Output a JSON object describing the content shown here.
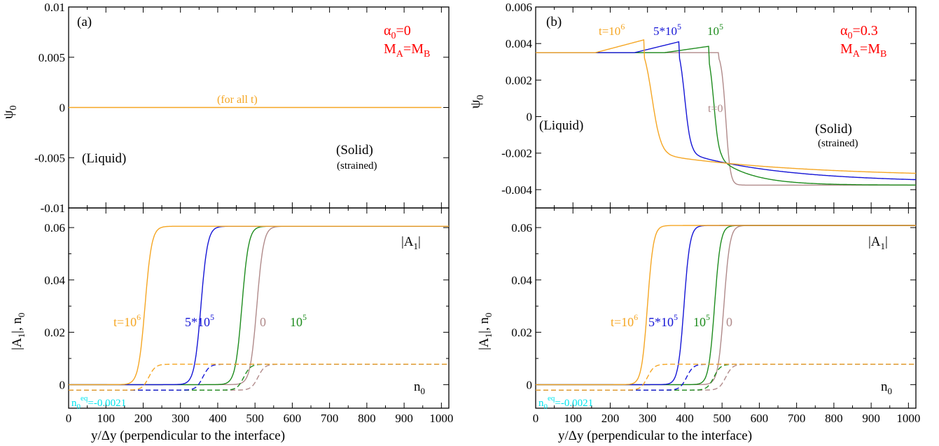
{
  "colors": {
    "t1e6": "#f5a623",
    "t5e5": "#1515d6",
    "t1e5": "#1e8c1e",
    "t0": "#b08a8a",
    "red": "#ff0000",
    "cyan": "#00e5ee",
    "black": "#000000"
  },
  "chart_data": [
    {
      "type": "line",
      "panel": "(a)",
      "legend": {
        "alpha": "α",
        "alpha_sub": "0",
        "alpha_val": "=0",
        "m": "M",
        "m_sub_a": "A",
        "m_eq": "=M",
        "m_sub_b": "B"
      },
      "psi": {
        "ylabel": "ψ",
        "ylabel_sub": "0",
        "ylim": [
          -0.01,
          0.01
        ],
        "yticks": [
          "0.01",
          "0.005",
          "0",
          "-0.005",
          "-0.01"
        ],
        "yticks_vals": [
          0.01,
          0.005,
          0,
          -0.005,
          -0.01
        ],
        "label_all_t": "(for all t)",
        "liquid": "(Liquid)",
        "solid": "(Solid)",
        "strained": "(strained)",
        "series": [
          {
            "key": "t1e6",
            "x": [
              0,
              1000
            ],
            "y": [
              0,
              0
            ]
          }
        ]
      },
      "amp": {
        "ylabel": "|A",
        "ylabel_sub": "1",
        "ylabel_rest": "|, n",
        "ylabel_sub2": "0",
        "ylim": [
          -0.009,
          0.0675
        ],
        "yticks": [
          "0.06",
          "0.04",
          "0.02",
          "0"
        ],
        "yticks_vals": [
          0.06,
          0.04,
          0.02,
          0
        ],
        "a1_label": "|A",
        "a1_sub": "1",
        "a1_end": "|",
        "n0_label": "n",
        "n0_sub": "0",
        "neq_label": "n",
        "neq_sub": "0",
        "neq_sup": "eq",
        "neq_val": "=-0.0021",
        "curve_labels": [
          {
            "key": "t1e6",
            "base": "t=10",
            "sup": "6"
          },
          {
            "key": "t5e5",
            "base": "5*10",
            "sup": "5"
          },
          {
            "key": "t1e5",
            "base": "10",
            "sup": "5"
          },
          {
            "key": "t0",
            "base": "0",
            "sup": ""
          }
        ],
        "amplitude": {
          "max": 0.0605,
          "width": 9,
          "centers": {
            "t1e6": 205,
            "t5e5": 355,
            "t1e5": 465,
            "t0": 505
          }
        },
        "n0": {
          "liquid": -0.0021,
          "solid": 0.0078,
          "width": 9,
          "centers": {
            "t1e6": 215,
            "t5e5": 360,
            "t1e5": 470,
            "t0": 508
          }
        }
      },
      "xlabel": "y/Δy (perpendicular to the interface)",
      "xticks": [
        "0",
        "100",
        "200",
        "300",
        "400",
        "500",
        "600",
        "700",
        "800",
        "900",
        "1000"
      ],
      "xlim": [
        0,
        1020
      ]
    },
    {
      "type": "line",
      "panel": "(b)",
      "legend": {
        "alpha": "α",
        "alpha_sub": "0",
        "alpha_val": "=0.3",
        "m": "M",
        "m_sub_a": "A",
        "m_eq": "=M",
        "m_sub_b": "B"
      },
      "psi": {
        "ylabel": "ψ",
        "ylabel_sub": "0",
        "ylim": [
          -0.005,
          0.006
        ],
        "yticks": [
          "0.006",
          "0.004",
          "0.002",
          "0",
          "-0.002",
          "-0.004"
        ],
        "yticks_vals": [
          0.006,
          0.004,
          0.002,
          0,
          -0.002,
          -0.004
        ],
        "liquid": "(Liquid)",
        "solid": "(Solid)",
        "strained": "(strained)",
        "curve_labels": [
          {
            "key": "t1e6",
            "base": "t=10",
            "sup": "6"
          },
          {
            "key": "t5e5",
            "base": "5*10",
            "sup": "5"
          },
          {
            "key": "t1e5",
            "base": "10",
            "sup": "5"
          },
          {
            "key": "t0",
            "base": "t=0",
            "sup": ""
          }
        ],
        "series": [
          {
            "key": "t1e6",
            "peakx": 290,
            "peak": 0.0042,
            "center": 312,
            "width": 12,
            "low": -0.0021,
            "end": -0.0033,
            "tau": 380
          },
          {
            "key": "t5e5",
            "peakx": 385,
            "peak": 0.0041,
            "center": 400,
            "width": 8,
            "low": -0.0021,
            "end": -0.0036,
            "tau": 260
          },
          {
            "key": "t1e5",
            "peakx": 465,
            "peak": 0.00385,
            "center": 478,
            "width": 7,
            "low": -0.0024,
            "end": -0.00375,
            "tau": 90
          },
          {
            "key": "t0",
            "peakx": 490,
            "peak": 0.0035,
            "center": 510,
            "width": 6,
            "low": -0.00375,
            "end": -0.00375,
            "tau": 60
          }
        ],
        "plateau": 0.0035
      },
      "amp": {
        "ylabel": "|A",
        "ylabel_sub": "1",
        "ylabel_rest": "|, n",
        "ylabel_sub2": "0",
        "ylim": [
          -0.009,
          0.0675
        ],
        "yticks": [
          "0.06",
          "0.04",
          "0.02",
          "0"
        ],
        "yticks_vals": [
          0.06,
          0.04,
          0.02,
          0
        ],
        "a1_label": "|A",
        "a1_sub": "1",
        "a1_end": "|",
        "n0_label": "n",
        "n0_sub": "0",
        "neq_label": "n",
        "neq_sub": "0",
        "neq_sup": "eq",
        "neq_val": "=-0.0021",
        "curve_labels": [
          {
            "key": "t1e6",
            "base": "t=10",
            "sup": "6"
          },
          {
            "key": "t5e5",
            "base": "5*10",
            "sup": "5"
          },
          {
            "key": "t1e5",
            "base": "10",
            "sup": "5"
          },
          {
            "key": "t0",
            "base": "0",
            "sup": ""
          }
        ],
        "amplitude": {
          "max": 0.0608,
          "width": 8,
          "centers": {
            "t1e6": 300,
            "t5e5": 398,
            "t1e5": 480,
            "t0": 505
          }
        },
        "n0": {
          "liquid": -0.0021,
          "solid": 0.0078,
          "width": 9,
          "centers": {
            "t1e6": 300,
            "t5e5": 405,
            "t1e5": 478,
            "t0": 510
          }
        }
      },
      "xlabel": "y/Δy (perpendicular to the interface)",
      "xticks": [
        "0",
        "100",
        "200",
        "300",
        "400",
        "500",
        "600",
        "700",
        "800",
        "900",
        "1000"
      ],
      "xlim": [
        0,
        1020
      ]
    }
  ]
}
